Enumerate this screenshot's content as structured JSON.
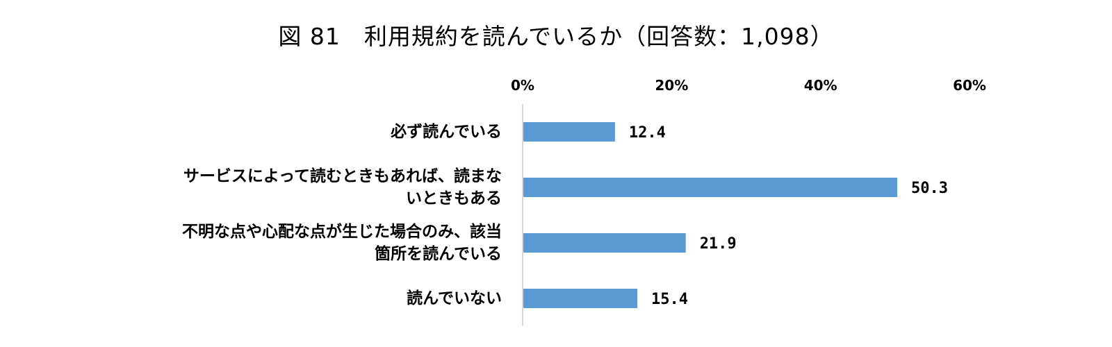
{
  "chart_data": {
    "type": "bar",
    "orientation": "horizontal",
    "title": "図 81　利用規約を読んでいるか（回答数：1,098）",
    "xlabel": "",
    "ylabel": "",
    "xlim": [
      0,
      60
    ],
    "ticks": [
      "0%",
      "20%",
      "40%",
      "60%"
    ],
    "tick_values": [
      0,
      20,
      40,
      60
    ],
    "categories": [
      "必ず読んでいる",
      "サービスによって読むときもあれば、読まないときもある",
      "不明な点や心配な点が生じた場合のみ、該当箇所を読んでいる",
      "読んでいない"
    ],
    "category_lines": [
      [
        "必ず読んでいる"
      ],
      [
        "サービスによって読むときもあれば、読まな",
        "いときもある"
      ],
      [
        "不明な点や心配な点が生じた場合のみ、該当",
        "箇所を読んでいる"
      ],
      [
        "読んでいない"
      ]
    ],
    "values": [
      12.4,
      50.3,
      21.9,
      15.4
    ],
    "value_labels": [
      "12.4",
      "50.3",
      "21.9",
      "15.4"
    ],
    "bar_color": "#5b9bd5",
    "grid": false,
    "legend": "none"
  }
}
